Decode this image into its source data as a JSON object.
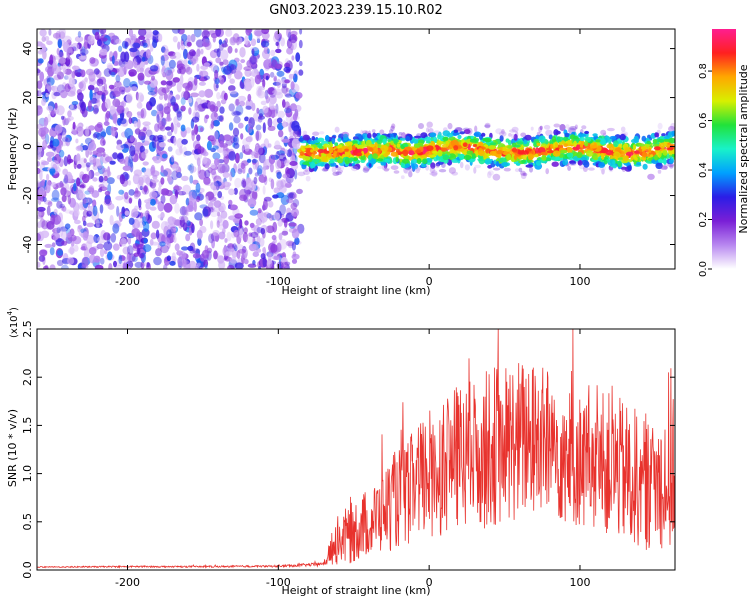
{
  "title": "GN03.2023.239.15.10.R02",
  "chart_data": [
    {
      "type": "heatmap",
      "xlabel": "Height of straight line (km)",
      "ylabel": "Frequency (Hz)",
      "xlim": [
        -260,
        163
      ],
      "ylim": [
        -50,
        48
      ],
      "xticks": [
        -200,
        -100,
        0,
        100
      ],
      "yticks": [
        -40,
        -20,
        0,
        20,
        40
      ],
      "colorbar": {
        "label": "Normalized spectral amplitude",
        "range": [
          0,
          0.97
        ],
        "ticks": [
          0.0,
          0.2,
          0.4,
          0.6,
          0.8
        ],
        "colormap": [
          "#ffffff",
          "#b887f0",
          "#7a1fd6",
          "#2b1de6",
          "#00a0ff",
          "#19f2c9",
          "#21e23a",
          "#d8f000",
          "#ffa800",
          "#ff2020",
          "#ff1e90"
        ]
      },
      "regions": [
        {
          "x_from": -260,
          "x_to": -85,
          "description_value": 0.18
        },
        {
          "x_from": -85,
          "x_to": 163,
          "center_freq_hz": 0,
          "band_halfwidth_hz": 6,
          "peak_value": 0.85
        }
      ]
    },
    {
      "type": "line",
      "xlabel": "Height of straight line (km)",
      "ylabel": "SNR (10 * v/v)",
      "y_multiplier": "(x10",
      "y_multiplier_exp": "4",
      "y_multiplier_close": ")",
      "xlim": [
        -260,
        163
      ],
      "ylim": [
        0,
        2.5
      ],
      "xticks": [
        -200,
        -100,
        0,
        100
      ],
      "yticks": [
        0.0,
        0.5,
        1.0,
        1.5,
        2.0,
        2.5
      ],
      "series": [
        {
          "color": "#e8322d",
          "x": [
            -260,
            -200,
            -150,
            -100,
            -70,
            -62,
            -55,
            -45,
            -35,
            -25,
            -15,
            0,
            15,
            30,
            45,
            60,
            75,
            90,
            105,
            120,
            135,
            150,
            163
          ],
          "y": [
            0.03,
            0.035,
            0.035,
            0.04,
            0.06,
            0.3,
            0.35,
            0.45,
            0.55,
            0.7,
            0.8,
            1.0,
            1.15,
            1.2,
            1.3,
            1.35,
            1.35,
            1.2,
            1.1,
            1.1,
            0.95,
            0.9,
            1.0
          ],
          "noise": [
            0.005,
            0.008,
            0.008,
            0.01,
            0.02,
            0.25,
            0.3,
            0.35,
            0.4,
            0.5,
            0.55,
            0.7,
            0.75,
            0.8,
            0.85,
            0.85,
            0.8,
            0.75,
            0.7,
            0.75,
            0.75,
            0.7,
            0.8
          ]
        }
      ]
    }
  ]
}
